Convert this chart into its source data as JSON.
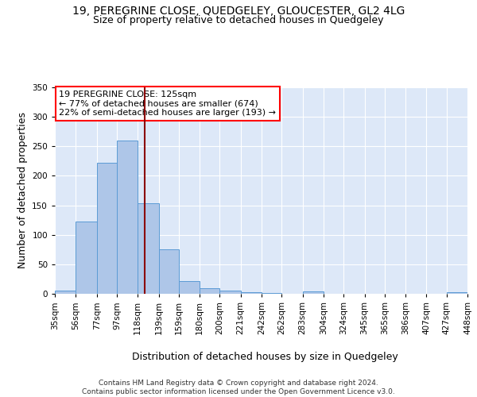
{
  "title": "19, PEREGRINE CLOSE, QUEDGELEY, GLOUCESTER, GL2 4LG",
  "subtitle": "Size of property relative to detached houses in Quedgeley",
  "xlabel": "Distribution of detached houses by size in Quedgeley",
  "ylabel": "Number of detached properties",
  "bins": [
    "35sqm",
    "56sqm",
    "77sqm",
    "97sqm",
    "118sqm",
    "139sqm",
    "159sqm",
    "180sqm",
    "200sqm",
    "221sqm",
    "242sqm",
    "262sqm",
    "283sqm",
    "304sqm",
    "324sqm",
    "345sqm",
    "365sqm",
    "386sqm",
    "407sqm",
    "427sqm",
    "448sqm"
  ],
  "bin_edges": [
    35,
    56,
    77,
    97,
    118,
    139,
    159,
    180,
    200,
    221,
    242,
    262,
    283,
    304,
    324,
    345,
    365,
    386,
    407,
    427,
    448
  ],
  "values": [
    6,
    122,
    222,
    260,
    153,
    75,
    21,
    9,
    5,
    3,
    2,
    0,
    4,
    0,
    0,
    0,
    0,
    0,
    0,
    3
  ],
  "bar_color": "#aec6e8",
  "bar_edge_color": "#5b9bd5",
  "background_color": "#dde8f8",
  "grid_color": "#ffffff",
  "vline_x": 125,
  "vline_color": "#8b0000",
  "annotation_box_text": "19 PEREGRINE CLOSE: 125sqm\n← 77% of detached houses are smaller (674)\n22% of semi-detached houses are larger (193) →",
  "footer": "Contains HM Land Registry data © Crown copyright and database right 2024.\nContains public sector information licensed under the Open Government Licence v3.0.",
  "ylim": [
    0,
    350
  ],
  "yticks": [
    0,
    50,
    100,
    150,
    200,
    250,
    300,
    350
  ],
  "title_fontsize": 10,
  "subtitle_fontsize": 9,
  "axis_label_fontsize": 9,
  "tick_fontsize": 7.5,
  "annotation_fontsize": 8,
  "footer_fontsize": 6.5
}
